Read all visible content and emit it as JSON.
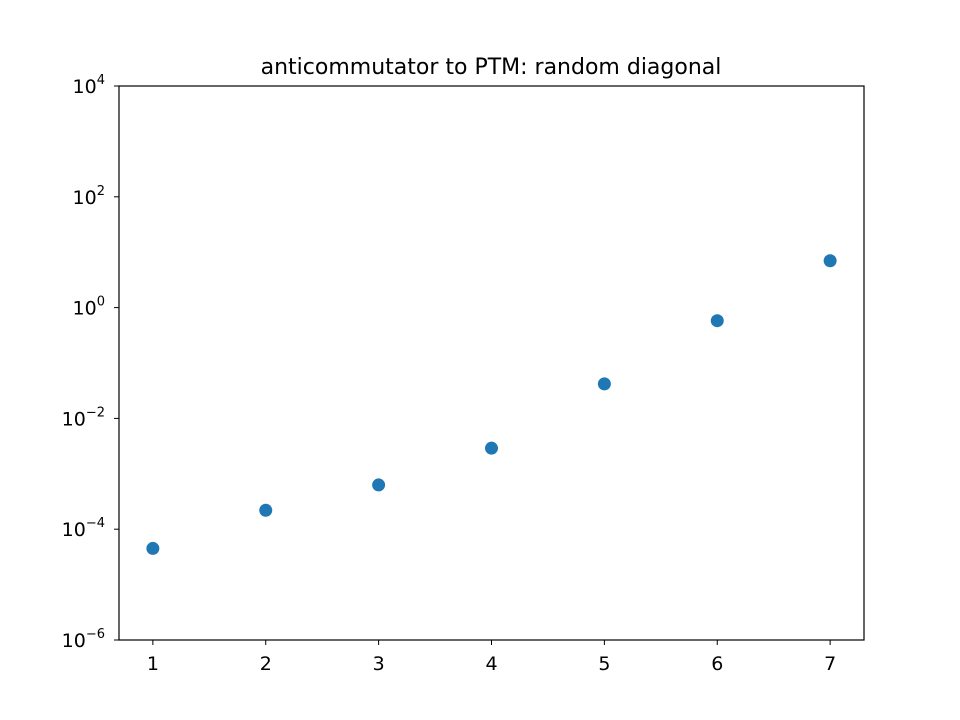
{
  "chart_data": {
    "type": "scatter",
    "title": "anticommutator to PTM: random diagonal",
    "xlabel": "",
    "ylabel": "",
    "xlim": [
      0.7,
      7.3
    ],
    "ylim": [
      1e-06,
      10000
    ],
    "yscale": "log",
    "grid": false,
    "x_ticks": [
      1,
      2,
      3,
      4,
      5,
      6,
      7
    ],
    "y_ticks": [
      {
        "base": "10",
        "exp": "−6",
        "value": 1e-06
      },
      {
        "base": "10",
        "exp": "−4",
        "value": 0.0001
      },
      {
        "base": "10",
        "exp": "−2",
        "value": 0.01
      },
      {
        "base": "10",
        "exp": "0",
        "value": 1
      },
      {
        "base": "10",
        "exp": "2",
        "value": 100
      },
      {
        "base": "10",
        "exp": "4",
        "value": 10000
      }
    ],
    "series": [
      {
        "color": "#1f77b4",
        "x": [
          1,
          2,
          3,
          4,
          5,
          6,
          7
        ],
        "y": [
          4.5e-05,
          0.00022,
          0.00063,
          0.0029,
          0.042,
          0.58,
          7.0
        ]
      }
    ]
  }
}
